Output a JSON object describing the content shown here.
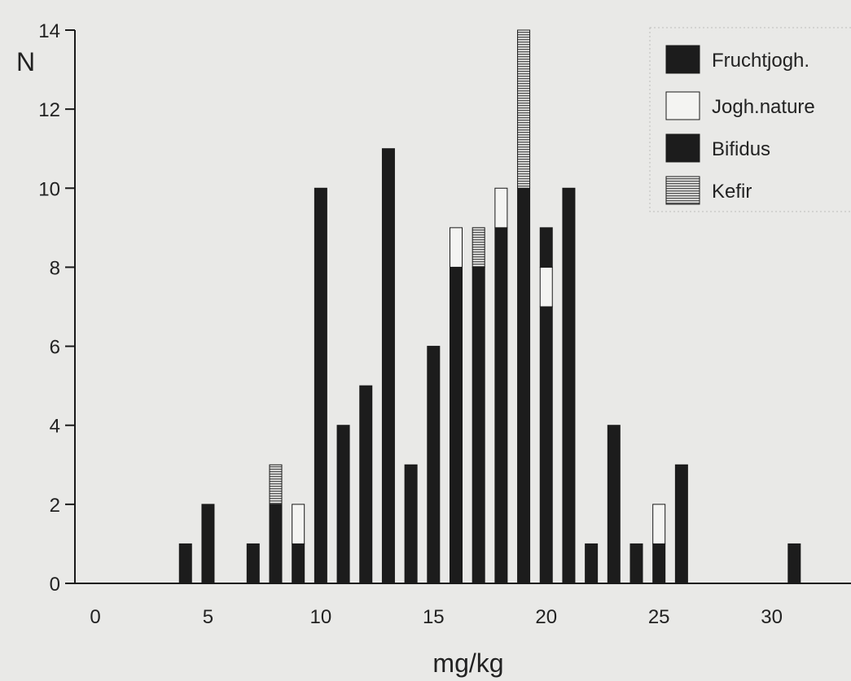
{
  "chart_data": {
    "type": "bar",
    "stacked": true,
    "xlabel": "mg/kg",
    "ylabel": "N",
    "xlim": [
      0,
      32
    ],
    "ylim": [
      0,
      14
    ],
    "x_ticks": [
      0,
      5,
      10,
      15,
      20,
      25,
      30
    ],
    "y_ticks": [
      0,
      2,
      4,
      6,
      8,
      10,
      12,
      14
    ],
    "legend_position": "top-right",
    "bins": [
      4,
      5,
      7,
      8,
      9,
      10,
      11,
      12,
      13,
      14,
      15,
      16,
      17,
      18,
      19,
      20,
      21,
      22,
      23,
      24,
      25,
      26,
      31
    ],
    "series": [
      {
        "name": "Fruchtjogh.",
        "color": "#1c1c1c",
        "pattern": "solid",
        "values": [
          1,
          2,
          1,
          2,
          1,
          10,
          4,
          5,
          11,
          3,
          6,
          8,
          8,
          9,
          10,
          7,
          10,
          1,
          4,
          1,
          1,
          3,
          1
        ]
      },
      {
        "name": "Jogh.nature",
        "color": "#f4f4f2",
        "pattern": "open",
        "values": [
          0,
          0,
          0,
          0,
          1,
          0,
          0,
          0,
          0,
          0,
          0,
          1,
          0,
          1,
          0,
          1,
          0,
          0,
          0,
          0,
          1,
          0,
          0
        ]
      },
      {
        "name": "Bifidus",
        "color": "#1c1c1c",
        "pattern": "solid",
        "values": [
          0,
          0,
          0,
          0,
          0,
          0,
          0,
          0,
          0,
          0,
          0,
          0,
          0,
          0,
          0,
          1,
          0,
          0,
          0,
          0,
          0,
          0,
          0
        ]
      },
      {
        "name": "Kefir",
        "color": "#777777",
        "pattern": "hatched",
        "values": [
          0,
          0,
          0,
          1,
          0,
          0,
          0,
          0,
          0,
          0,
          0,
          0,
          1,
          0,
          4,
          0,
          0,
          0,
          0,
          0,
          0,
          0,
          0
        ]
      }
    ]
  }
}
